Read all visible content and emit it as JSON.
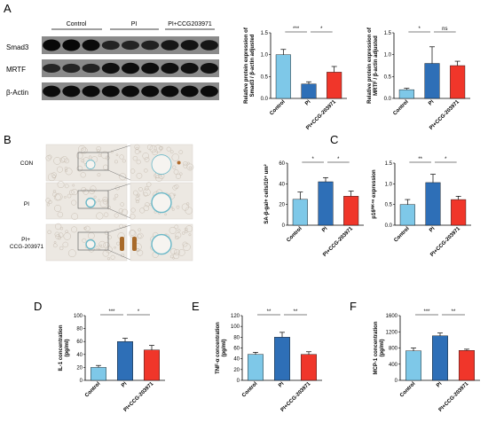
{
  "panels": {
    "A": "A",
    "B": "B",
    "C": "C",
    "D": "D",
    "E": "E",
    "F": "F"
  },
  "colors": {
    "control": "#7ec8e8",
    "pi": "#2e6fb7",
    "treat": "#f0362a",
    "error": "#000000"
  },
  "blot": {
    "groups": [
      "Control",
      "PI",
      "PI+CCG203971"
    ],
    "rows": [
      {
        "label": "Smad3",
        "intensity": [
          0.95,
          0.95,
          0.9,
          0.45,
          0.45,
          0.5,
          0.7,
          0.72,
          0.7
        ]
      },
      {
        "label": "MRTF",
        "intensity": [
          0.4,
          0.42,
          0.45,
          0.8,
          0.85,
          0.85,
          0.8,
          0.8,
          0.78
        ]
      },
      {
        "label": "β-Actin",
        "intensity": [
          0.9,
          0.9,
          0.9,
          0.9,
          0.9,
          0.9,
          0.9,
          0.9,
          0.9
        ]
      }
    ]
  },
  "histology": {
    "rows": [
      "CON",
      "PI",
      "PI+\nCCG-203971"
    ]
  },
  "chart_data": [
    {
      "id": "A1",
      "type": "bar",
      "categories": [
        "Control",
        "PI",
        "PI+CCG-203971"
      ],
      "values": [
        1.0,
        0.33,
        0.6
      ],
      "errors": [
        0.12,
        0.05,
        0.13
      ],
      "ylabel": "Relative protein expression of\nSmad3 / β-actin adjusted",
      "ylim": [
        0,
        1.5
      ],
      "yticks": [
        "0.0",
        "0.5",
        "1.0",
        "1.5"
      ],
      "sig": [
        {
          "from": 0,
          "to": 1,
          "label": "***"
        },
        {
          "from": 1,
          "to": 2,
          "label": "*"
        }
      ]
    },
    {
      "id": "A2",
      "type": "bar",
      "categories": [
        "Control",
        "PI",
        "PI+CCG-203971"
      ],
      "values": [
        0.2,
        0.8,
        0.75
      ],
      "errors": [
        0.03,
        0.38,
        0.1
      ],
      "ylabel": "Relative protein expression of\nMRTF / β-actin adjusted",
      "ylim": [
        0,
        1.5
      ],
      "yticks": [
        "0.0",
        "0.5",
        "1.0",
        "1.5"
      ],
      "sig": [
        {
          "from": 0,
          "to": 1,
          "label": "*"
        },
        {
          "from": 1,
          "to": 2,
          "label": "ns"
        }
      ]
    },
    {
      "id": "B",
      "type": "bar",
      "categories": [
        "Control",
        "PI",
        "PI+CCG-203971"
      ],
      "values": [
        25,
        42,
        28
      ],
      "errors": [
        7,
        4,
        5
      ],
      "ylabel": "SA-β-gal+ cells/10⁴ um²",
      "ylim": [
        0,
        60
      ],
      "yticks": [
        "0",
        "20",
        "40",
        "60"
      ],
      "sig": [
        {
          "from": 0,
          "to": 1,
          "label": "*"
        },
        {
          "from": 1,
          "to": 2,
          "label": "*"
        }
      ]
    },
    {
      "id": "C",
      "type": "bar",
      "categories": [
        "Control",
        "PI",
        "PI+CCG-203971"
      ],
      "values": [
        0.5,
        1.03,
        0.62
      ],
      "errors": [
        0.12,
        0.2,
        0.08
      ],
      "ylabel": "p16ᴵᴺᴷ⁴ᵃ expression",
      "ylim": [
        0,
        1.5
      ],
      "yticks": [
        "0.0",
        "0.5",
        "1.0",
        "1.5"
      ],
      "sig": [
        {
          "from": 0,
          "to": 1,
          "label": "**"
        },
        {
          "from": 1,
          "to": 2,
          "label": "*"
        }
      ]
    },
    {
      "id": "D",
      "type": "bar",
      "categories": [
        "Control",
        "PI",
        "PI+CCG-203971"
      ],
      "values": [
        20,
        60,
        47
      ],
      "errors": [
        3,
        5,
        7
      ],
      "ylabel": "IL-1 concentration\n(pg/ml)",
      "ylim": [
        0,
        100
      ],
      "yticks": [
        "0",
        "20",
        "40",
        "60",
        "80",
        "100"
      ],
      "sig": [
        {
          "from": 0,
          "to": 1,
          "label": "***"
        },
        {
          "from": 1,
          "to": 2,
          "label": "*"
        }
      ]
    },
    {
      "id": "E",
      "type": "bar",
      "categories": [
        "Control",
        "PI",
        "PI+CCG-203971"
      ],
      "values": [
        48,
        80,
        48
      ],
      "errors": [
        4,
        9,
        5
      ],
      "ylabel": "TNF-α concentration\n(pg/ml)",
      "ylim": [
        0,
        120
      ],
      "yticks": [
        "0",
        "20",
        "40",
        "60",
        "80",
        "100",
        "120"
      ],
      "sig": [
        {
          "from": 0,
          "to": 1,
          "label": "**"
        },
        {
          "from": 1,
          "to": 2,
          "label": "**"
        }
      ]
    },
    {
      "id": "F",
      "type": "bar",
      "categories": [
        "Control",
        "PI",
        "PI+CCG-203971"
      ],
      "values": [
        730,
        1100,
        740
      ],
      "errors": [
        70,
        70,
        30
      ],
      "ylabel": "MCP-1 concentration\n(pg/ml)",
      "ylim": [
        0,
        1600
      ],
      "yticks": [
        "0",
        "400",
        "800",
        "1200",
        "1600"
      ],
      "yticks_all": [
        "0",
        "200",
        "400",
        "600",
        "800",
        "1000",
        "1200",
        "1400",
        "1600"
      ],
      "sig": [
        {
          "from": 0,
          "to": 1,
          "label": "***"
        },
        {
          "from": 1,
          "to": 2,
          "label": "**"
        }
      ]
    }
  ]
}
